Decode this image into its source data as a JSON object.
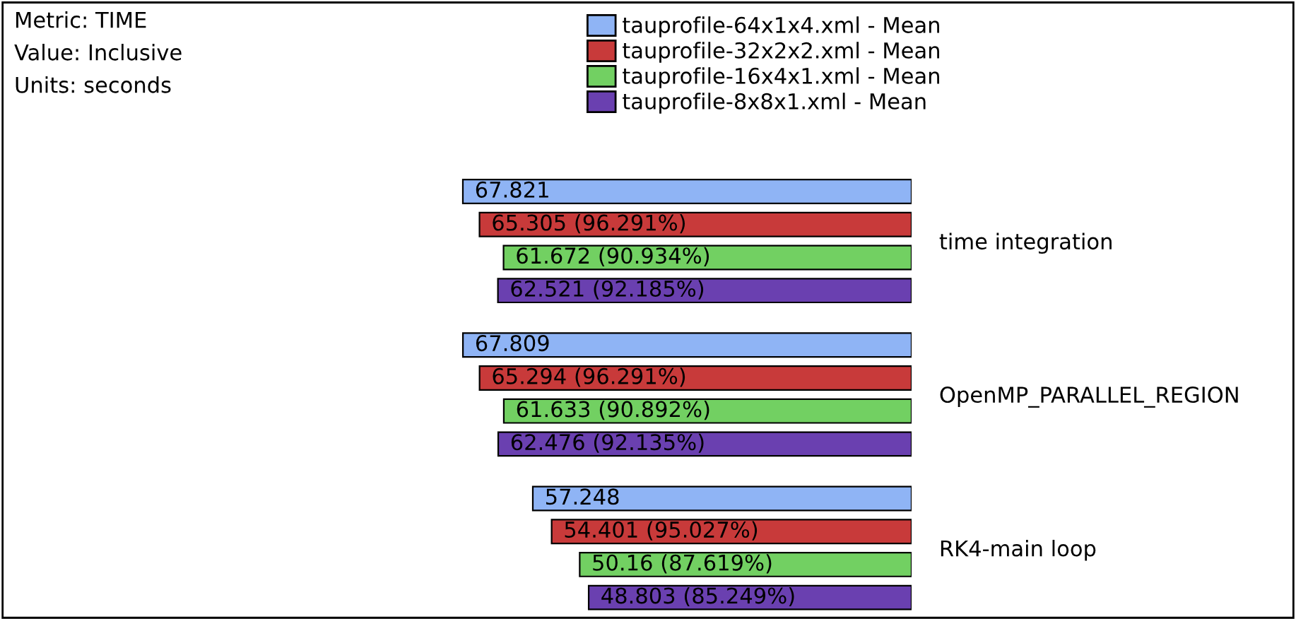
{
  "chart_data": {
    "type": "bar",
    "orientation": "horizontal",
    "legend": "top",
    "categories": [
      "time integration",
      "OpenMP_PARALLEL_REGION",
      "RK4-main loop"
    ],
    "annotations": [
      "Metric: TIME",
      "Value: Inclusive",
      "Units: seconds"
    ],
    "series": [
      {
        "name": "tauprofile-64x1x4.xml - Mean",
        "color": "#8fb4f5",
        "values": [
          67.821,
          67.809,
          57.248
        ],
        "value_labels": [
          "67.821",
          "67.809",
          "57.248"
        ]
      },
      {
        "name": "tauprofile-32x2x2.xml - Mean",
        "color": "#c83a3a",
        "values": [
          65.305,
          65.294,
          54.401
        ],
        "value_labels": [
          "65.305 (96.291%)",
          "65.294 (96.291%)",
          "54.401 (95.027%)"
        ]
      },
      {
        "name": "tauprofile-16x4x1.xml - Mean",
        "color": "#72d062",
        "values": [
          61.672,
          61.633,
          50.16
        ],
        "value_labels": [
          "61.672 (90.934%)",
          "61.633 (90.892%)",
          "50.16 (87.619%)"
        ]
      },
      {
        "name": "tauprofile-8x8x1.xml - Mean",
        "color": "#6a40b0",
        "values": [
          62.521,
          62.476,
          48.803
        ],
        "value_labels": [
          "62.521 (92.185%)",
          "62.476 (92.135%)",
          "48.803 (85.249%)"
        ]
      }
    ]
  }
}
